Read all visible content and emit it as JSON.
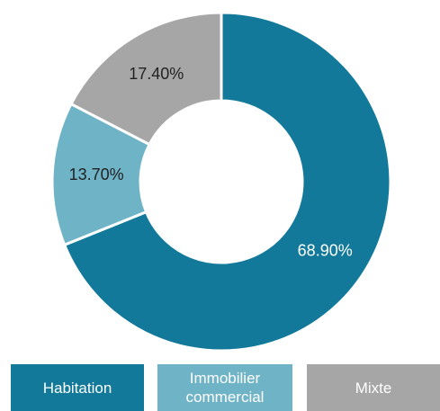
{
  "chart_data": {
    "type": "donut",
    "categories": [
      "Habitation",
      "Immobilier commercial",
      "Mixte"
    ],
    "values": [
      68.9,
      13.7,
      17.4
    ],
    "value_labels": [
      "68.90%",
      "13.70%",
      "17.40%"
    ],
    "colors": [
      "#13799a",
      "#6fb3c6",
      "#a6a6a6"
    ],
    "legend": "bottom"
  }
}
